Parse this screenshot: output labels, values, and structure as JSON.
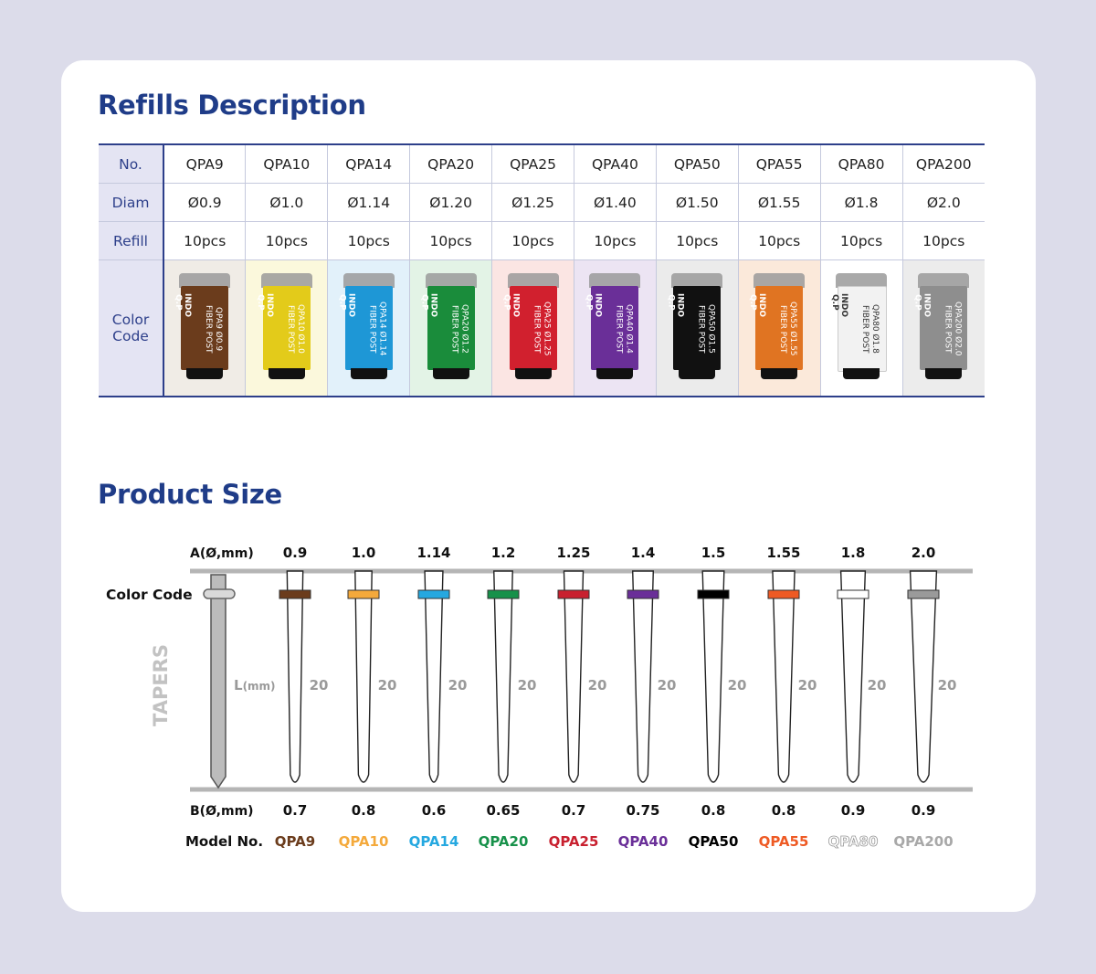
{
  "refills_title": "Refills Description",
  "product_size_title": "Product Size",
  "table": {
    "row_labels": {
      "no": "No.",
      "diam": "Diam",
      "refill": "Refill",
      "color_code": [
        "Color",
        "Code"
      ]
    },
    "items": [
      {
        "no": "QPA9",
        "diam": "Ø0.9",
        "refill": "10pcs",
        "color": "#6b3c1c",
        "tint": "#f0ece6",
        "label": "QPA9 Ø0.9",
        "light": false
      },
      {
        "no": "QPA10",
        "diam": "Ø1.0",
        "refill": "10pcs",
        "color": "#e3cb1a",
        "tint": "#fbf8dc",
        "label": "QPA10 Ø1.0",
        "light": false
      },
      {
        "no": "QPA14",
        "diam": "Ø1.14",
        "refill": "10pcs",
        "color": "#1e97d6",
        "tint": "#e2f1fa",
        "label": "QPA14 Ø1.14",
        "light": false
      },
      {
        "no": "QPA20",
        "diam": "Ø1.20",
        "refill": "10pcs",
        "color": "#1a8c3b",
        "tint": "#e3f3e6",
        "label": "QPA20 Ø1.2",
        "light": false
      },
      {
        "no": "QPA25",
        "diam": "Ø1.25",
        "refill": "10pcs",
        "color": "#d1202e",
        "tint": "#fbe5e3",
        "label": "QPA25 Ø1.25",
        "light": false
      },
      {
        "no": "QPA40",
        "diam": "Ø1.40",
        "refill": "10pcs",
        "color": "#6a2f98",
        "tint": "#ece4f3",
        "label": "QPA40 Ø1.4",
        "light": false
      },
      {
        "no": "QPA50",
        "diam": "Ø1.50",
        "refill": "10pcs",
        "color": "#111111",
        "tint": "#ebebeb",
        "label": "QPA50 Ø1.5",
        "light": false
      },
      {
        "no": "QPA55",
        "diam": "Ø1.55",
        "refill": "10pcs",
        "color": "#e07422",
        "tint": "#fbe9da",
        "label": "QPA55 Ø1.55",
        "light": false
      },
      {
        "no": "QPA80",
        "diam": "Ø1.8",
        "refill": "10pcs",
        "color": "#f2f2f2",
        "tint": "#ffffff",
        "label": "QPA80 Ø1.8",
        "light": true
      },
      {
        "no": "QPA200",
        "diam": "Ø2.0",
        "refill": "10pcs",
        "color": "#8e8e8e",
        "tint": "#ececec",
        "label": "QPA200 Ø2.0",
        "light": false
      }
    ],
    "tube_logo": "INDO Q.P",
    "tube_brand": "FIBER POST"
  },
  "diagram": {
    "a_label": "A(Ø,mm)",
    "b_label": "B(Ø,mm)",
    "model_label": "Model No.",
    "color_code_label": "Color Code",
    "tapers_label": "TAPERS",
    "l_label": "L",
    "l_unit": "(mm)",
    "posts": [
      {
        "model": "QPA9",
        "a": "0.9",
        "b": "0.7",
        "length": "20",
        "band": "#6b3c1c",
        "model_color": "#6b3c1c",
        "outline": false
      },
      {
        "model": "QPA10",
        "a": "1.0",
        "b": "0.8",
        "length": "20",
        "band": "#f4a93b",
        "model_color": "#f4a93b",
        "outline": false
      },
      {
        "model": "QPA14",
        "a": "1.14",
        "b": "0.6",
        "length": "20",
        "band": "#25a8e0",
        "model_color": "#25a8e0",
        "outline": false
      },
      {
        "model": "QPA20",
        "a": "1.2",
        "b": "0.65",
        "length": "20",
        "band": "#17914a",
        "model_color": "#17914a",
        "outline": false
      },
      {
        "model": "QPA25",
        "a": "1.25",
        "b": "0.7",
        "length": "20",
        "band": "#c8202f",
        "model_color": "#c8202f",
        "outline": false
      },
      {
        "model": "QPA40",
        "a": "1.4",
        "b": "0.75",
        "length": "20",
        "band": "#6a2f98",
        "model_color": "#6a2f98",
        "outline": false
      },
      {
        "model": "QPA50",
        "a": "1.5",
        "b": "0.8",
        "length": "20",
        "band": "#000000",
        "model_color": "#000000",
        "outline": false
      },
      {
        "model": "QPA55",
        "a": "1.55",
        "b": "0.8",
        "length": "20",
        "band": "#ee5a24",
        "model_color": "#ee5a24",
        "outline": false
      },
      {
        "model": "QPA80",
        "a": "1.8",
        "b": "0.9",
        "length": "20",
        "band": "#ffffff",
        "model_color": "#ffffff",
        "outline": true
      },
      {
        "model": "QPA200",
        "a": "2.0",
        "b": "0.9",
        "length": "20",
        "band": "#9a9a9a",
        "model_color": "#a8a8a8",
        "outline": false
      }
    ]
  }
}
